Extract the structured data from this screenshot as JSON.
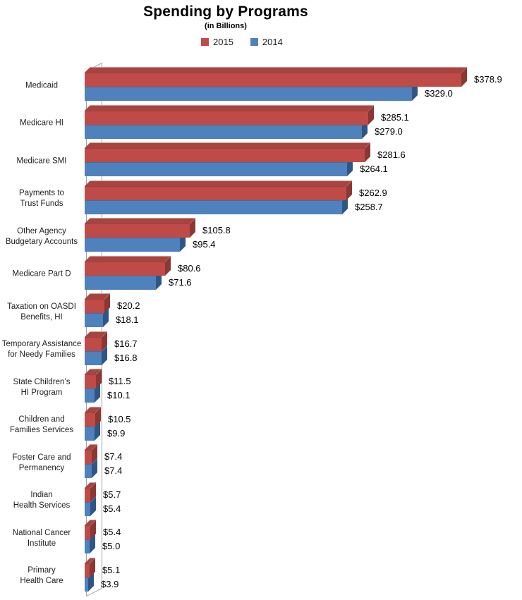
{
  "title": {
    "text": "Spending by Programs",
    "subtitle": "(in Billions)"
  },
  "legend": {
    "items": [
      {
        "label": "2015",
        "color": "#BE4B48"
      },
      {
        "label": "2014",
        "color": "#4F81BD"
      }
    ]
  },
  "chart_data": {
    "type": "bar",
    "orientation": "horizontal",
    "style": "3d",
    "title": "Spending by Programs",
    "subtitle": "(in Billions)",
    "unit": "USD billions",
    "legend_position": "top",
    "value_labels": "outside end, formatted $#.# ",
    "grid": false,
    "axis_range": [
      0,
      385
    ],
    "categories": [
      "Medicaid",
      "Medicare HI",
      "Medicare SMI",
      "Payments to\nTrust Funds",
      "Other Agency\nBudgetary Accounts",
      "Medicare Part D",
      "Taxation on OASDI\nBenefits, HI",
      "Temporary Assistance\nfor Needy Families",
      "State Children’s\nHI Program",
      "Children and\nFamilies Services",
      "Foster Care and\nPermanency",
      "Indian\nHealth Services",
      "National Cancer\nInstitute",
      "Primary\nHealth Care"
    ],
    "series": [
      {
        "name": "2015",
        "color": "#BE4B48",
        "values": [
          378.9,
          285.1,
          281.6,
          262.9,
          105.8,
          80.6,
          20.2,
          16.7,
          11.5,
          10.5,
          7.4,
          5.7,
          5.4,
          5.1
        ]
      },
      {
        "name": "2014",
        "color": "#4F81BD",
        "values": [
          329.0,
          279.0,
          264.1,
          258.7,
          95.4,
          71.6,
          18.1,
          16.8,
          10.1,
          9.9,
          7.4,
          5.4,
          5.0,
          3.9
        ]
      }
    ]
  }
}
